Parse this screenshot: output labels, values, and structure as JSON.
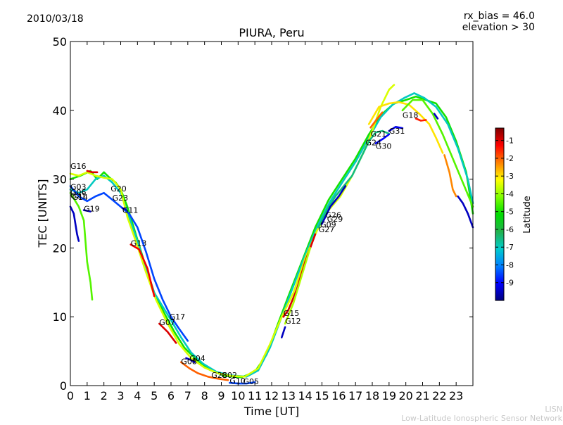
{
  "header": {
    "date": "2010/03/18",
    "rx_bias": "rx_bias = 46.0",
    "elevation": "elevation > 30"
  },
  "watermark": {
    "line1": "LISN",
    "line2": "Low-Latitude Ionospheric Sensor Network"
  },
  "chart_data": {
    "type": "scatter",
    "title": "PIURA, Peru",
    "xlabel": "Time [UT]",
    "ylabel": "TEC [UNITS]",
    "xlim": [
      0,
      24
    ],
    "ylim": [
      0,
      50
    ],
    "xticks": [
      "0",
      "1",
      "2",
      "3",
      "4",
      "5",
      "6",
      "7",
      "8",
      "9",
      "10",
      "11",
      "12",
      "13",
      "14",
      "15",
      "16",
      "17",
      "18",
      "19",
      "20",
      "21",
      "22",
      "23"
    ],
    "yticks": [
      "0",
      "10",
      "20",
      "30",
      "40",
      "50"
    ],
    "grid": false,
    "colorbar": {
      "label": "Latitude",
      "range": [
        -10,
        -0.3
      ],
      "ticks": [
        "-1",
        "-2",
        "-3",
        "-4",
        "-5",
        "-6",
        "-7",
        "-8",
        "-9"
      ],
      "colors": [
        "#00007f",
        "#0000ff",
        "#007fff",
        "#00cccc",
        "#22b14c",
        "#00dd00",
        "#7fff00",
        "#ffff00",
        "#ff7f00",
        "#ff0000",
        "#7f0000"
      ]
    },
    "satellite_labels": [
      {
        "name": "G16",
        "x": 0.0,
        "y": 31.5
      },
      {
        "name": "G03",
        "x": 0.0,
        "y": 28.5
      },
      {
        "name": "G06",
        "x": 0.0,
        "y": 27.7
      },
      {
        "name": "G21",
        "x": 0.0,
        "y": 27.2
      },
      {
        "name": "G14",
        "x": 0.1,
        "y": 27.0
      },
      {
        "name": "G19",
        "x": 0.8,
        "y": 25.3
      },
      {
        "name": "G20",
        "x": 2.4,
        "y": 28.2
      },
      {
        "name": "G23",
        "x": 2.5,
        "y": 26.9
      },
      {
        "name": "G11",
        "x": 3.1,
        "y": 25.1
      },
      {
        "name": "G13",
        "x": 3.6,
        "y": 20.3
      },
      {
        "name": "G17",
        "x": 5.9,
        "y": 9.6
      },
      {
        "name": "G07",
        "x": 5.3,
        "y": 8.8
      },
      {
        "name": "G04",
        "x": 7.1,
        "y": 3.6
      },
      {
        "name": "G08",
        "x": 6.6,
        "y": 3.1
      },
      {
        "name": "G28",
        "x": 8.4,
        "y": 1.1
      },
      {
        "name": "G02",
        "x": 9.0,
        "y": 1.1
      },
      {
        "name": "G10",
        "x": 9.5,
        "y": 0.3
      },
      {
        "name": "G05",
        "x": 10.3,
        "y": 0.2
      },
      {
        "name": "G15",
        "x": 12.7,
        "y": 10.1
      },
      {
        "name": "G12",
        "x": 12.8,
        "y": 9.0
      },
      {
        "name": "G26",
        "x": 15.2,
        "y": 24.4
      },
      {
        "name": "G29",
        "x": 15.3,
        "y": 23.8
      },
      {
        "name": "G09",
        "x": 14.9,
        "y": 23.0
      },
      {
        "name": "G27",
        "x": 14.8,
        "y": 22.3
      },
      {
        "name": "G18",
        "x": 19.8,
        "y": 38.9
      },
      {
        "name": "G21",
        "x": 17.9,
        "y": 36.2
      },
      {
        "name": "G31",
        "x": 19.0,
        "y": 36.6
      },
      {
        "name": "G24",
        "x": 17.6,
        "y": 34.9
      },
      {
        "name": "G30",
        "x": 18.2,
        "y": 34.4
      }
    ],
    "series": [
      {
        "lat": -5.0,
        "points": [
          [
            0.0,
            30.0
          ],
          [
            0.6,
            30.5
          ],
          [
            1.2,
            31.2
          ],
          [
            1.6,
            30.0
          ],
          [
            2.0,
            31.0
          ],
          [
            2.3,
            30.3
          ],
          [
            2.7,
            29.5
          ],
          [
            3.0,
            28.5
          ],
          [
            3.4,
            26.0
          ],
          [
            3.9,
            22.0
          ],
          [
            4.4,
            18.0
          ],
          [
            5.0,
            13.5
          ],
          [
            5.6,
            10.5
          ],
          [
            6.2,
            7.8
          ],
          [
            6.8,
            5.5
          ],
          [
            7.5,
            3.8
          ],
          [
            8.3,
            2.3
          ],
          [
            9.2,
            1.4
          ],
          [
            10.2,
            1.2
          ],
          [
            11.0,
            2.0
          ],
          [
            11.7,
            4.5
          ],
          [
            12.3,
            8.5
          ],
          [
            13.0,
            13.0
          ],
          [
            13.8,
            18.0
          ],
          [
            14.6,
            23.0
          ],
          [
            15.4,
            27.0
          ],
          [
            16.2,
            30.0
          ],
          [
            17.0,
            33.0
          ],
          [
            17.8,
            36.5
          ],
          [
            18.6,
            39.5
          ],
          [
            19.3,
            41.0
          ],
          [
            20.0,
            41.5
          ],
          [
            20.6,
            42.0
          ],
          [
            21.2,
            41.5
          ],
          [
            21.8,
            41.0
          ],
          [
            22.4,
            39.0
          ],
          [
            23.0,
            35.5
          ],
          [
            23.6,
            31.0
          ],
          [
            24.0,
            25.0
          ]
        ]
      },
      {
        "lat": -7.0,
        "points": [
          [
            0.0,
            28.5
          ],
          [
            0.5,
            28.0
          ],
          [
            1.0,
            28.5
          ],
          [
            1.5,
            30.0
          ],
          [
            2.0,
            30.5
          ],
          [
            2.5,
            29.5
          ],
          [
            3.0,
            28.0
          ],
          [
            3.5,
            24.5
          ],
          [
            4.0,
            21.0
          ],
          [
            4.5,
            17.0
          ],
          [
            5.0,
            13.5
          ],
          [
            5.5,
            11.5
          ],
          [
            6.0,
            9.5
          ],
          [
            6.6,
            7.0
          ],
          [
            7.2,
            4.8
          ],
          [
            7.9,
            3.2
          ],
          [
            8.7,
            2.0
          ],
          [
            9.5,
            1.5
          ],
          [
            10.5,
            1.3
          ],
          [
            11.2,
            2.2
          ],
          [
            11.9,
            5.5
          ],
          [
            12.6,
            10.0
          ],
          [
            13.3,
            14.5
          ],
          [
            14.0,
            19.0
          ],
          [
            14.8,
            23.5
          ],
          [
            15.5,
            26.8
          ],
          [
            16.2,
            29.5
          ],
          [
            17.0,
            32.5
          ],
          [
            17.8,
            36.0
          ],
          [
            18.5,
            39.0
          ],
          [
            19.2,
            40.8
          ],
          [
            19.9,
            41.8
          ],
          [
            20.5,
            42.5
          ],
          [
            21.1,
            41.8
          ],
          [
            21.8,
            40.5
          ],
          [
            22.5,
            38.0
          ],
          [
            23.1,
            34.5
          ],
          [
            23.7,
            30.0
          ],
          [
            24.0,
            26.5
          ]
        ]
      },
      {
        "lat": -3.5,
        "points": [
          [
            0.0,
            30.8
          ],
          [
            0.5,
            30.5
          ],
          [
            1.0,
            31.0
          ],
          [
            1.5,
            30.5
          ],
          [
            2.0,
            30.2
          ],
          [
            2.5,
            30.0
          ],
          [
            3.0,
            28.5
          ],
          [
            3.4,
            24.5
          ],
          [
            3.9,
            21.0
          ],
          [
            4.5,
            16.5
          ],
          [
            5.1,
            12.5
          ],
          [
            5.8,
            9.0
          ],
          [
            6.5,
            6.0
          ],
          [
            7.2,
            4.0
          ],
          [
            8.0,
            2.6
          ],
          [
            8.8,
            1.8
          ],
          [
            9.6,
            1.4
          ],
          [
            10.4,
            1.3
          ],
          [
            11.2,
            2.5
          ],
          [
            11.9,
            6.0
          ],
          [
            12.6,
            10.0
          ],
          [
            13.3,
            13.5
          ],
          [
            14.0,
            18.5
          ],
          [
            14.7,
            22.5
          ],
          [
            15.4,
            25.5
          ],
          [
            16.1,
            27.5
          ],
          [
            16.8,
            30.5
          ],
          [
            17.5,
            34.0
          ],
          [
            18.0,
            37.0
          ],
          [
            18.5,
            40.5
          ],
          [
            19.0,
            43.0
          ],
          [
            19.3,
            43.7
          ]
        ]
      },
      {
        "lat": -8.5,
        "points": [
          [
            0.0,
            29.0
          ],
          [
            0.5,
            27.5
          ],
          [
            1.0,
            26.8
          ],
          [
            1.5,
            27.5
          ],
          [
            2.0,
            28.0
          ],
          [
            2.5,
            27.0
          ],
          [
            3.0,
            26.0
          ],
          [
            3.5,
            25.0
          ],
          [
            4.0,
            23.0
          ],
          [
            4.5,
            19.5
          ],
          [
            5.0,
            15.5
          ],
          [
            5.5,
            12.5
          ],
          [
            6.0,
            10.0
          ],
          [
            6.5,
            8.2
          ],
          [
            7.0,
            6.5
          ]
        ]
      },
      {
        "lat": -3.0,
        "points": [
          [
            17.8,
            38.0
          ],
          [
            18.4,
            40.5
          ],
          [
            19.0,
            41.0
          ],
          [
            19.6,
            41.2
          ],
          [
            20.2,
            40.8
          ],
          [
            20.8,
            39.5
          ],
          [
            21.4,
            38.0
          ],
          [
            21.8,
            36.0
          ],
          [
            22.2,
            33.8
          ]
        ]
      },
      {
        "lat": -4.5,
        "points": [
          [
            19.8,
            40.0
          ],
          [
            20.4,
            41.5
          ],
          [
            21.0,
            41.5
          ],
          [
            21.6,
            39.5
          ],
          [
            22.2,
            36.5
          ],
          [
            22.8,
            33.0
          ],
          [
            23.4,
            29.5
          ],
          [
            24.0,
            26.0
          ]
        ]
      },
      {
        "lat": -2.0,
        "points": [
          [
            17.9,
            37.5
          ],
          [
            18.3,
            38.8
          ],
          [
            18.6,
            39.7
          ]
        ]
      },
      {
        "lat": -1.5,
        "points": [
          [
            20.6,
            38.8
          ],
          [
            20.9,
            38.5
          ],
          [
            21.2,
            38.6
          ]
        ]
      },
      {
        "lat": -6.5,
        "points": [
          [
            14.8,
            23.0
          ],
          [
            15.3,
            25.5
          ],
          [
            15.8,
            27.5
          ],
          [
            16.3,
            29.0
          ],
          [
            16.8,
            30.5
          ],
          [
            17.3,
            33.0
          ],
          [
            17.8,
            35.5
          ],
          [
            18.2,
            36.8
          ],
          [
            18.6,
            37.0
          ],
          [
            19.0,
            36.6
          ]
        ]
      },
      {
        "lat": -9.5,
        "points": [
          [
            15.0,
            23.5
          ],
          [
            15.5,
            26.0
          ],
          [
            16.0,
            27.5
          ],
          [
            16.4,
            29.0
          ]
        ]
      },
      {
        "lat": -9.0,
        "points": [
          [
            18.2,
            35.2
          ],
          [
            18.6,
            35.8
          ],
          [
            19.0,
            36.5
          ]
        ]
      },
      {
        "lat": -9.2,
        "points": [
          [
            19.0,
            37.0
          ],
          [
            19.4,
            37.6
          ],
          [
            19.8,
            37.4
          ]
        ]
      },
      {
        "lat": -9.5,
        "points": [
          [
            23.1,
            27.5
          ],
          [
            23.4,
            26.5
          ],
          [
            23.7,
            25.0
          ],
          [
            24.0,
            23.0
          ]
        ]
      },
      {
        "lat": -9.5,
        "points": [
          [
            21.7,
            39.5
          ],
          [
            21.9,
            38.8
          ]
        ]
      },
      {
        "lat": -2.3,
        "points": [
          [
            22.3,
            33.5
          ],
          [
            22.6,
            31.0
          ],
          [
            22.8,
            28.5
          ],
          [
            23.0,
            27.5
          ]
        ]
      },
      {
        "lat": -1.0,
        "points": [
          [
            12.7,
            10.0
          ],
          [
            13.0,
            11.0
          ],
          [
            13.5,
            14.0
          ],
          [
            14.0,
            18.0
          ],
          [
            14.6,
            22.0
          ]
        ]
      },
      {
        "lat": -3.8,
        "points": [
          [
            12.8,
            9.0
          ],
          [
            13.3,
            12.0
          ],
          [
            13.8,
            16.0
          ],
          [
            14.3,
            20.0
          ]
        ]
      },
      {
        "lat": -9.5,
        "points": [
          [
            12.6,
            7.0
          ],
          [
            12.8,
            8.5
          ]
        ]
      },
      {
        "lat": -1.0,
        "points": [
          [
            5.3,
            9.0
          ],
          [
            5.8,
            7.8
          ],
          [
            6.3,
            6.2
          ]
        ]
      },
      {
        "lat": -2.0,
        "points": [
          [
            6.6,
            3.4
          ],
          [
            7.1,
            2.5
          ],
          [
            7.6,
            1.8
          ],
          [
            8.2,
            1.3
          ],
          [
            8.8,
            1.0
          ],
          [
            9.4,
            0.8
          ]
        ]
      },
      {
        "lat": -1.2,
        "points": [
          [
            3.6,
            20.5
          ],
          [
            4.1,
            19.8
          ],
          [
            4.6,
            17.0
          ],
          [
            5.0,
            13.0
          ]
        ]
      },
      {
        "lat": -4.5,
        "points": [
          [
            0.0,
            28.0
          ],
          [
            0.5,
            26.0
          ],
          [
            0.8,
            24.0
          ],
          [
            1.0,
            18.0
          ],
          [
            1.2,
            15.0
          ],
          [
            1.3,
            12.5
          ]
        ]
      },
      {
        "lat": -9.5,
        "points": [
          [
            0.0,
            26.0
          ],
          [
            0.2,
            25.0
          ],
          [
            0.4,
            22.0
          ],
          [
            0.5,
            21.0
          ]
        ]
      },
      {
        "lat": -1.0,
        "points": [
          [
            1.0,
            31.2
          ],
          [
            1.3,
            31.0
          ],
          [
            1.6,
            31.0
          ]
        ]
      },
      {
        "lat": -9.5,
        "points": [
          [
            0.8,
            25.5
          ],
          [
            1.2,
            25.3
          ]
        ]
      },
      {
        "lat": -9.5,
        "points": [
          [
            3.1,
            25.8
          ],
          [
            3.3,
            25.6
          ]
        ]
      },
      {
        "lat": -8.5,
        "points": [
          [
            9.5,
            0.4
          ],
          [
            10.0,
            0.3
          ],
          [
            10.5,
            0.3
          ],
          [
            11.0,
            0.5
          ]
        ]
      },
      {
        "lat": -9.5,
        "points": [
          [
            6.9,
            4.0
          ],
          [
            7.2,
            3.7
          ],
          [
            7.4,
            3.4
          ]
        ]
      }
    ]
  }
}
